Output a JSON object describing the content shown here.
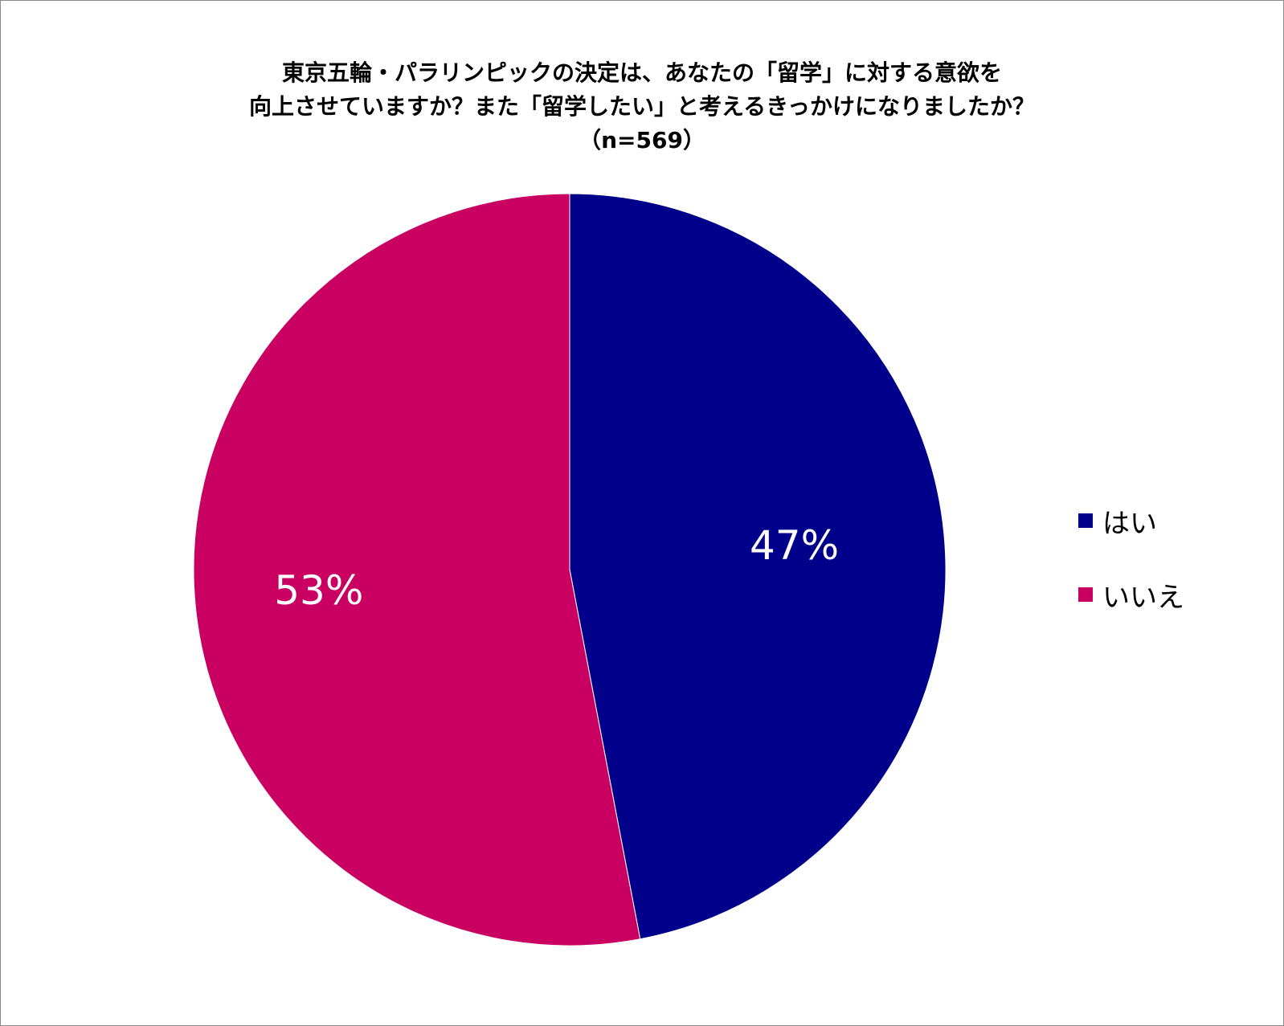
{
  "chart_data": {
    "type": "pie",
    "title_lines": [
      "東京五輪・パラリンピックの決定は、あなたの「留学」に対する意欲を",
      "向上させていますか？また「留学したい」と考えるきっかけになりましたか？",
      "（n=569）"
    ],
    "slices": [
      {
        "label": "はい",
        "value": 47,
        "display": "47%",
        "color": "#00008B"
      },
      {
        "label": "いいえ",
        "value": 53,
        "display": "53%",
        "color": "#C90062"
      }
    ],
    "start_angle_deg": 0,
    "direction": "clockwise",
    "legend_position": "right"
  }
}
